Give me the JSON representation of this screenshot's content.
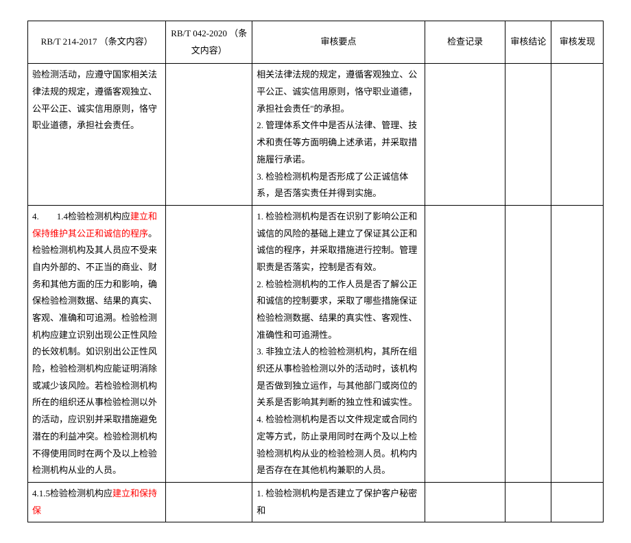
{
  "headers": {
    "col1": "RB/T 214-2017 （条文内容）",
    "col2": "RB/T 042-2020 （条文内容）",
    "col3": "审核要点",
    "col4": "检查记录",
    "col5": "审核结论",
    "col6": "审核发现"
  },
  "rows": [
    {
      "col1_parts": [
        {
          "text": "验检测活动，应遵守国家相关法律法规的规定，遵循客观独立、公平公正、诚实信用原则，恪守职业道德，承担社会责任。",
          "highlight": false
        }
      ],
      "col2": "",
      "col3_lines": [
        "相关法律法规的规定，遵循客观独立、公平公正、诚实信用原则，恪守职业道德，承担社会责任\"的承担。",
        "2. 管理体系文件中是否从法律、管理、技术和责任等方面明确上述承诺，并采取措施履行承诺。",
        "3. 检验检测机构是否形成了公正诚信体系，是否落实责任并得到实施。"
      ],
      "col4": "",
      "col5": "",
      "col6": ""
    },
    {
      "col1_parts": [
        {
          "text": "4.　　1.4检验检测机构应",
          "highlight": false
        },
        {
          "text": "建立和保持维护其公正和诚信的程序",
          "highlight": true
        },
        {
          "text": "。检验检测机构及其人员应不受来自内外部的、不正当的商业、财务和其他方面的压力和影响，确保检验检测数据、结果的真实、客观、准确和可追溯。检验检测机构应建立识别出现公正性风险的长效机制。如识别出公正性风险，检验检测机构应能证明消除或减少该风险。若检验检测机构所在的组织还从事检验检测以外的活动，应识别并采取措施避免潜在的利益冲突。检验检测机构不得使用同时在两个及以上检验检测机构从业的人员。",
          "highlight": false
        }
      ],
      "col2": "",
      "col3_lines": [
        "1. 检验检测机构是否在识别了影响公正和诚信的风险的基础上建立了保证其公正和诚信的程序，并采取措施进行控制。管理职责是否落实，控制是否有效。",
        "2. 检验检测机构的工作人员是否了解公正和诚信的控制要求，采取了哪些措施保证检验检测数据、结果的真实性、客观性、准确性和可追溯性。",
        "3. 非独立法人的检验检测机构，其所在组织还从事检验检测以外的活动时，该机构是否做到独立运作，与其他部门或岗位的关系是否影响其判断的独立性和诚实性。",
        "4. 检验检测机构是否以文件规定或合同约定等方式，防止录用同时在两个及以上检验检测机构从业的检验检测人员。机构内是否存在在其他机构兼职的人员。"
      ],
      "col4": "",
      "col5": "",
      "col6": ""
    },
    {
      "col1_parts": [
        {
          "text": "4.1.5检验检测机构应",
          "highlight": false
        },
        {
          "text": "建立和保持保",
          "highlight": true
        }
      ],
      "col2": "",
      "col3_lines": [
        "1. 检验检测机构是否建立了保护客户秘密和"
      ],
      "col4": "",
      "col5": "",
      "col6": ""
    }
  ]
}
